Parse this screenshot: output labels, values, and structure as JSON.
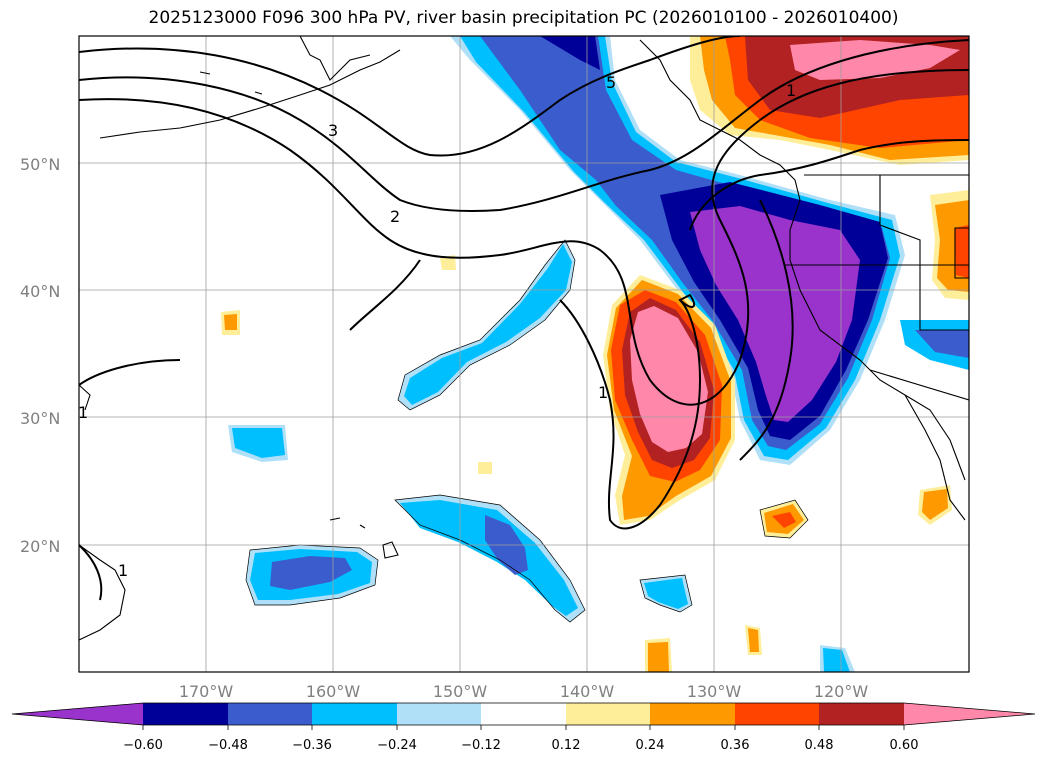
{
  "title": "2025123000 F096 300 hPa PV, river basin precipitation PC (2026010100 - 2026010400)",
  "axes": {
    "lat_labels": [
      "50°N",
      "40°N",
      "30°N",
      "20°N"
    ],
    "lon_labels": [
      "170°W",
      "160°W",
      "150°W",
      "140°W",
      "130°W",
      "120°W"
    ]
  },
  "colorbar": {
    "colors": [
      "#9933cc",
      "#000099",
      "#3a5ccc",
      "#00bfff",
      "#b0e0f8",
      "#ffffff",
      "#ffee99",
      "#ff9900",
      "#ff4400",
      "#b22222",
      "#ff88aa"
    ],
    "tick_labels": [
      "−0.60",
      "−0.48",
      "−0.36",
      "−0.24",
      "−0.12",
      "0.12",
      "0.24",
      "0.36",
      "0.48",
      "0.60"
    ]
  },
  "contour_labels": [
    "3",
    "2",
    "1",
    "1",
    "1",
    "5",
    "1"
  ],
  "chart_data": {
    "type": "contour_map",
    "title": "2025123000 F096 300 hPa PV, river basin precipitation PC (2026010100 - 2026010400)",
    "fields": {
      "shaded": "river basin precipitation PC",
      "contours": "300 hPa PV"
    },
    "shading_levels": [
      -0.6,
      -0.48,
      -0.36,
      -0.24,
      -0.12,
      0.12,
      0.24,
      0.36,
      0.48,
      0.6
    ],
    "pv_contour_levels": [
      1,
      2,
      3,
      5
    ],
    "lon_range": [
      -180,
      -110
    ],
    "lat_range": [
      10,
      60
    ],
    "xticks": [
      -170,
      -160,
      -150,
      -140,
      -130,
      -120
    ],
    "yticks": [
      20,
      30,
      40,
      50
    ]
  }
}
